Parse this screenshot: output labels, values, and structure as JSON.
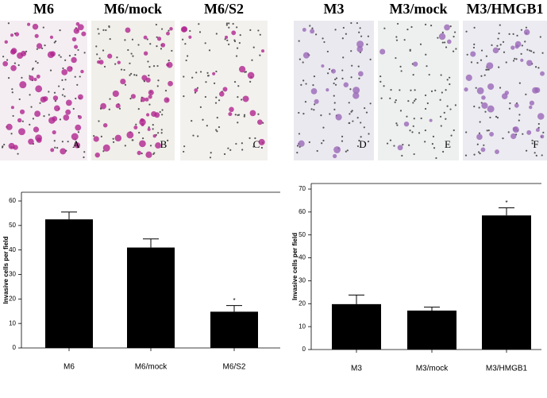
{
  "panels": [
    {
      "title": "M6",
      "letter": "A"
    },
    {
      "title": "M6/mock",
      "letter": "B"
    },
    {
      "title": "M6/S2",
      "letter": "C"
    },
    {
      "title": "M3",
      "letter": "D"
    },
    {
      "title": "M3/mock",
      "letter": "E"
    },
    {
      "title": "M3/HMGB1",
      "letter": "F"
    }
  ],
  "chart_data": [
    {
      "type": "bar",
      "y_label": "Invasive cells per field",
      "categories": [
        "M6",
        "M6/mock",
        "M6/S2"
      ],
      "values": [
        52.5,
        41,
        14.8
      ],
      "errors": [
        3,
        3.5,
        2.5
      ],
      "color": "#000000",
      "ylim": [
        0,
        60
      ],
      "yticks": [
        0,
        10,
        20,
        30,
        40,
        50,
        60
      ],
      "annotations": [
        {
          "text": "*",
          "category": "M6/S2"
        }
      ]
    },
    {
      "type": "bar",
      "y_label": "Invasive cells per field",
      "categories": [
        "M3",
        "M3/mock",
        "M3/HMGB1"
      ],
      "values": [
        19.8,
        17,
        58.5
      ],
      "errors": [
        4,
        1.5,
        3.3
      ],
      "color": "#000000",
      "ylim": [
        0,
        70
      ],
      "yticks": [
        0,
        10,
        20,
        30,
        40,
        50,
        60,
        70
      ],
      "annotations": [
        {
          "text": "*",
          "category": "M3/HMGB1"
        }
      ]
    }
  ]
}
